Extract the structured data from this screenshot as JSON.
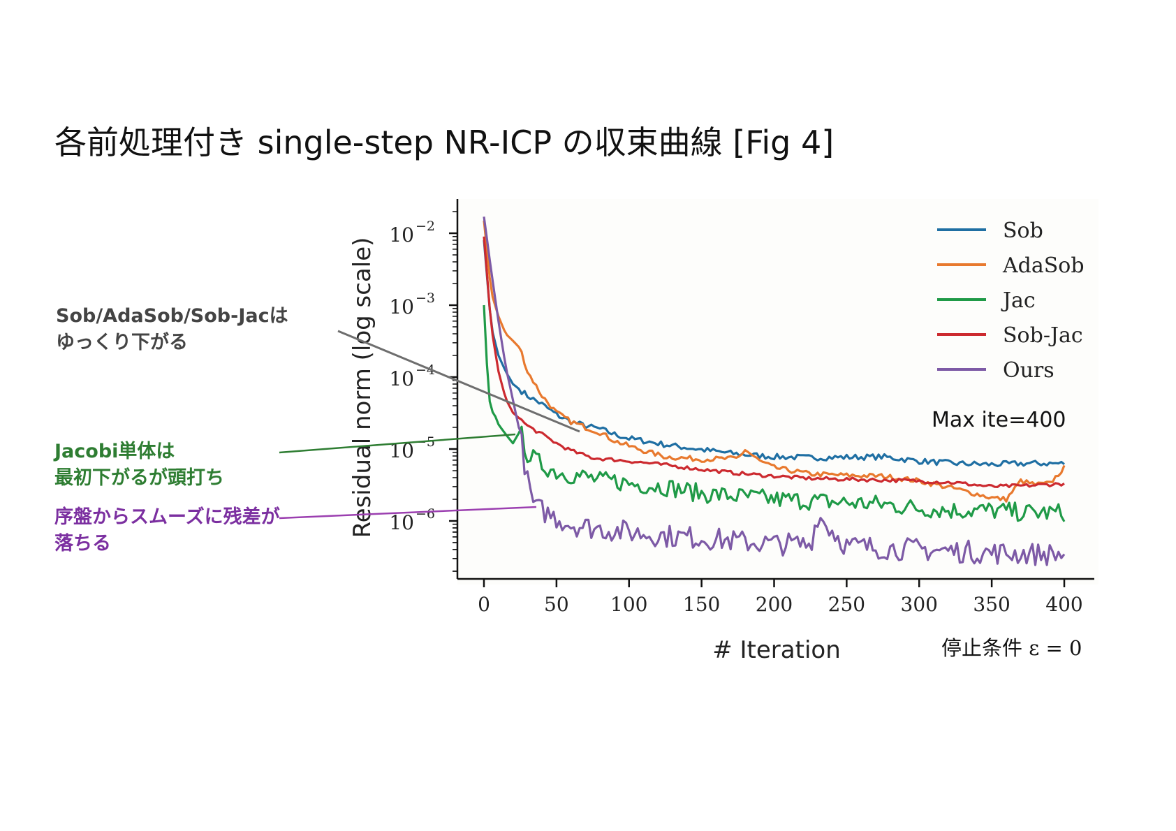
{
  "slide": {
    "title": "各前処理付き single-step NR-ICP の収束曲線 [Fig 4]"
  },
  "annotations": {
    "sob_line1": "Sob/AdaSob/Sob-Jacは",
    "sob_line2": "ゆっくり下がる",
    "jac_line1": "Jacobi単体は",
    "jac_line2": "最初下がるが頭打ち",
    "ours_line1": "序盤からスムーズに残差が",
    "ours_line2": "落ちる",
    "max_ite": "Max ite=400",
    "stop_condition": "停止条件 ε = 0"
  },
  "colors": {
    "Sob": "#1f6fa3",
    "AdaSob": "#e8792e",
    "Jac": "#1f9a47",
    "Sob-Jac": "#cc2a2f",
    "Ours": "#7d5aa6",
    "annot_sob": "#444444",
    "annot_jac": "#2e7d32",
    "annot_ours": "#7b2fa0"
  },
  "chart_data": {
    "type": "line",
    "title": "",
    "xlabel": "# Iteration",
    "ylabel": "Residual norm (log scale)",
    "yscale": "log",
    "xlim": [
      -20,
      420
    ],
    "ylim": [
      2e-07,
      0.03
    ],
    "xticks": [
      0,
      50,
      100,
      150,
      200,
      250,
      300,
      350,
      400
    ],
    "yticks": [
      {
        "value": 0.01,
        "base": "10",
        "exp": "−2"
      },
      {
        "value": 0.001,
        "base": "10",
        "exp": "−3"
      },
      {
        "value": 0.0001,
        "base": "10",
        "exp": "−4"
      },
      {
        "value": 1e-05,
        "base": "10",
        "exp": "−5"
      },
      {
        "value": 1e-06,
        "base": "10",
        "exp": "−6"
      }
    ],
    "legend_position": "top-right",
    "series": [
      {
        "name": "Sob",
        "x": [
          0,
          5,
          10,
          15,
          20,
          30,
          40,
          50,
          60,
          70,
          80,
          90,
          100,
          110,
          125,
          150,
          175,
          200,
          225,
          250,
          275,
          300,
          325,
          350,
          375,
          400
        ],
        "values": [
          0.008,
          0.0005,
          0.0002,
          0.00012,
          8e-05,
          5.5e-05,
          4.2e-05,
          3e-05,
          2.4e-05,
          2.1e-05,
          1.9e-05,
          1.6e-05,
          1.4e-05,
          1.3e-05,
          1.15e-05,
          9.8e-06,
          8.5e-06,
          7.8e-06,
          7.6e-06,
          7.7e-06,
          7.8e-06,
          6.8e-06,
          6.3e-06,
          6.1e-06,
          6.3e-06,
          6.3e-06
        ]
      },
      {
        "name": "AdaSob",
        "x": [
          0,
          5,
          10,
          15,
          20,
          25,
          30,
          40,
          50,
          60,
          70,
          80,
          90,
          100,
          110,
          125,
          150,
          175,
          180,
          190,
          200,
          225,
          250,
          275,
          300,
          325,
          350,
          360,
          370,
          380,
          390,
          400
        ],
        "values": [
          0.015,
          0.0015,
          0.0007,
          0.0004,
          0.00032,
          0.00025,
          0.00012,
          5.5e-05,
          3.2e-05,
          2.4e-05,
          2e-05,
          1.7e-05,
          1.3e-05,
          1.1e-05,
          9.5e-06,
          7.8e-06,
          7.2e-06,
          7.4e-06,
          9.8e-06,
          6.8e-06,
          5.5e-06,
          4.5e-06,
          4.3e-06,
          4.2e-06,
          3.6e-06,
          2.8e-06,
          2.1e-06,
          2e-06,
          3.6e-06,
          3.2e-06,
          3.3e-06,
          5.5e-06
        ]
      },
      {
        "name": "Jac",
        "x": [
          0,
          3,
          5,
          8,
          10,
          15,
          20,
          25,
          30,
          40,
          50,
          60,
          70,
          80,
          90,
          100,
          125,
          150,
          175,
          200,
          225,
          250,
          275,
          300,
          325,
          350,
          375,
          400
        ],
        "values": [
          0.001,
          6e-05,
          3.5e-05,
          2.8e-05,
          2.2e-05,
          1.6e-05,
          1.2e-05,
          1.8e-05,
          8.5e-06,
          6e-06,
          4.8e-06,
          4.4e-06,
          4.1e-06,
          3.6e-06,
          3.6e-06,
          3.3e-06,
          3e-06,
          2.4e-06,
          2.2e-06,
          2e-06,
          1.9e-06,
          1.8e-06,
          1.7e-06,
          1.5e-06,
          1.4e-06,
          1.4e-06,
          1.3e-06,
          1.3e-06
        ]
      },
      {
        "name": "Sob-Jac",
        "x": [
          0,
          5,
          10,
          15,
          20,
          25,
          30,
          40,
          50,
          60,
          75,
          100,
          125,
          150,
          175,
          200,
          225,
          250,
          275,
          300,
          325,
          350,
          375,
          400
        ],
        "values": [
          0.009,
          0.0005,
          0.00012,
          5e-05,
          3.2e-05,
          2.6e-05,
          2.1e-05,
          1.6e-05,
          1.2e-05,
          9.5e-06,
          7.5e-06,
          6.8e-06,
          6e-06,
          5.2e-06,
          4.6e-06,
          4.2e-06,
          3.9e-06,
          3.8e-06,
          3.7e-06,
          3.6e-06,
          3.4e-06,
          3e-06,
          3.1e-06,
          3.3e-06
        ]
      },
      {
        "name": "Ours",
        "x": [
          0,
          5,
          10,
          15,
          20,
          25,
          30,
          35,
          40,
          50,
          60,
          75,
          100,
          125,
          150,
          175,
          200,
          225,
          230,
          250,
          275,
          300,
          325,
          350,
          375,
          400
        ],
        "values": [
          0.017,
          0.003,
          0.0006,
          0.00014,
          4.8e-05,
          1.6e-05,
          3.5e-06,
          1.5e-06,
          1.4e-06,
          1.1e-06,
          9e-07,
          8e-07,
          7e-07,
          6.2e-07,
          5.8e-07,
          5.2e-07,
          4.8e-07,
          4.7e-07,
          1.2e-06,
          4.5e-07,
          4.2e-07,
          4e-07,
          3.8e-07,
          3.6e-07,
          3.5e-07,
          3.4e-07
        ]
      }
    ]
  }
}
